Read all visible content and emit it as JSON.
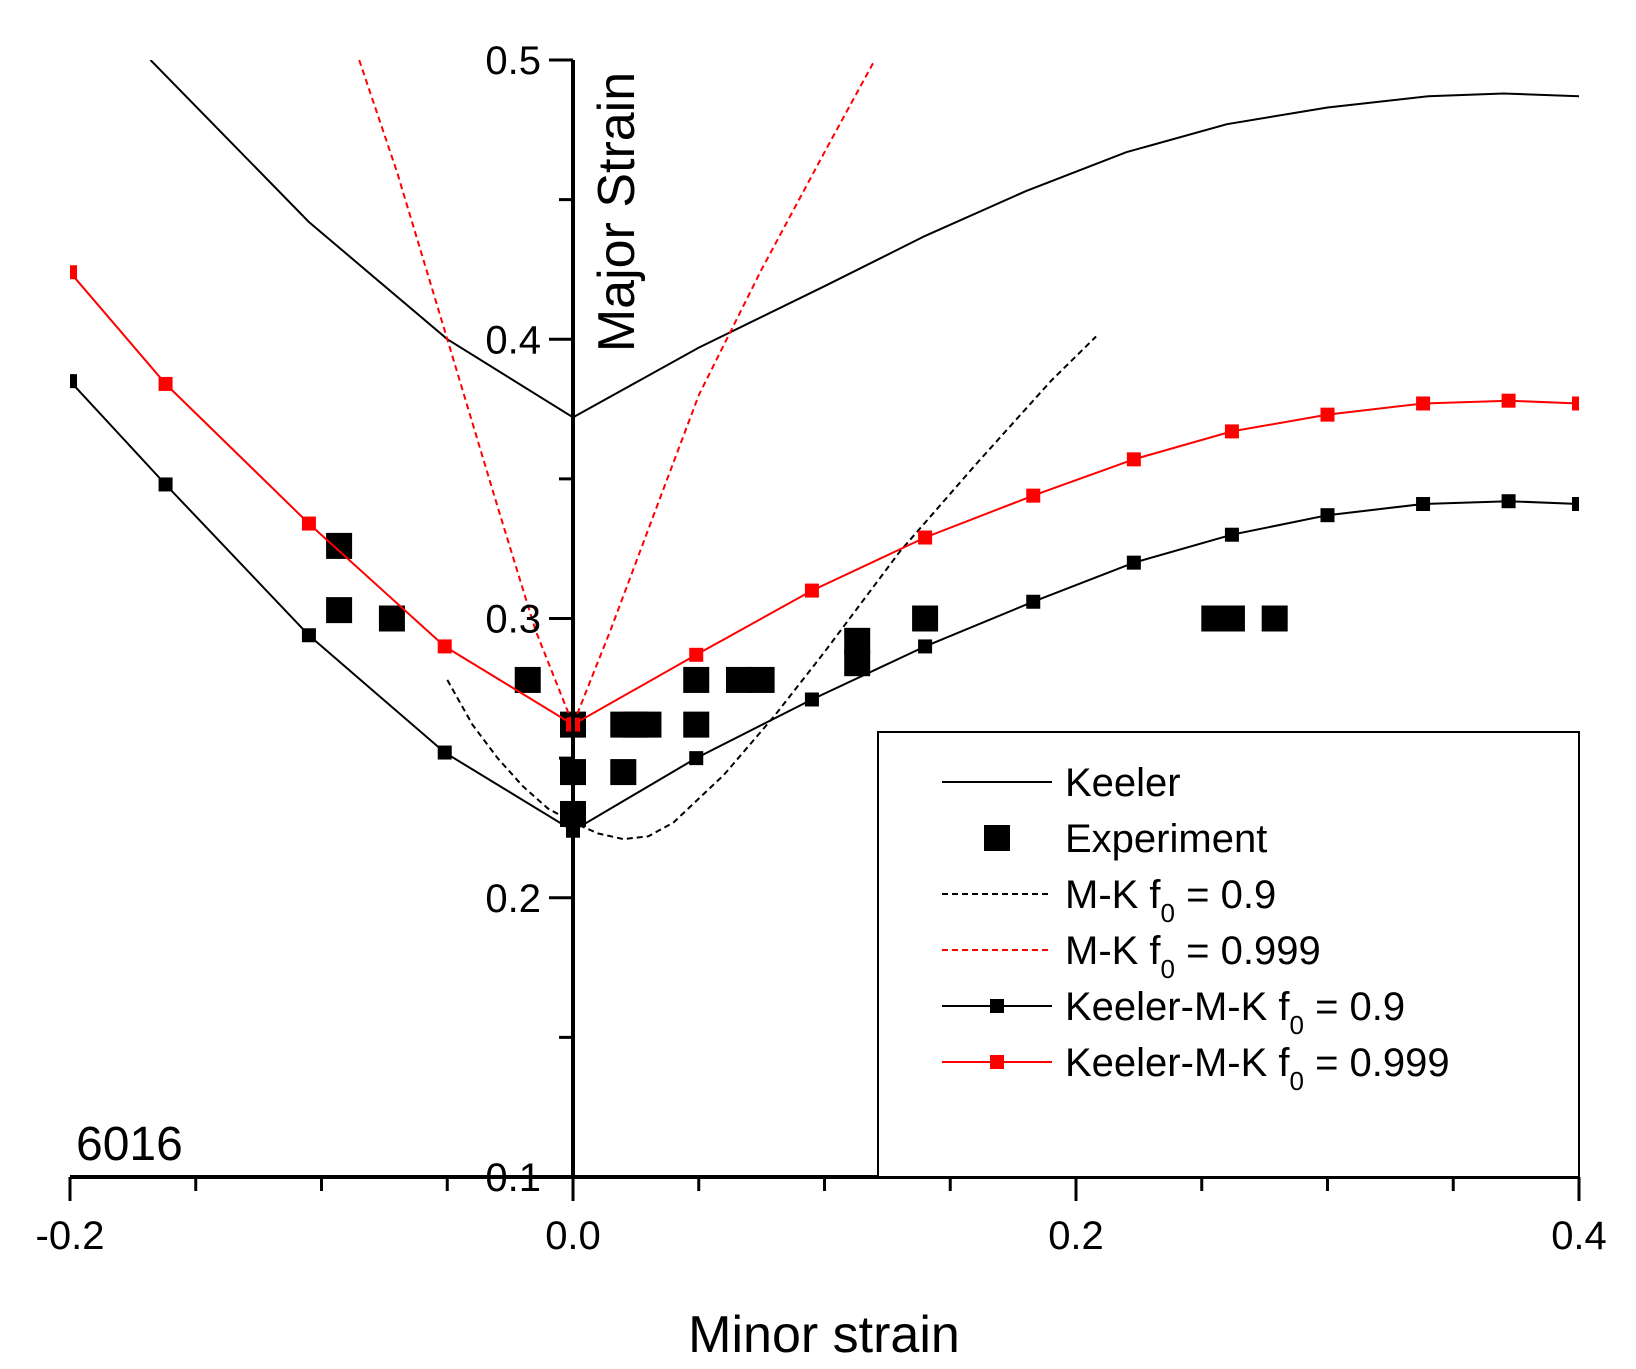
{
  "chart_data": {
    "type": "line",
    "title": "",
    "xlabel": "Minor strain",
    "ylabel": "Major Strain",
    "xlim": [
      -0.2,
      0.4
    ],
    "ylim": [
      0.1,
      0.5
    ],
    "grid": false,
    "legend_position": "bottom-right",
    "annotation": "6016",
    "x_tick_labels": [
      "-0.2",
      "0.0",
      "0.2",
      "0.4"
    ],
    "x_tick_values": [
      -0.2,
      0.0,
      0.2,
      0.4
    ],
    "y_tick_labels": [
      "0.1",
      "0.2",
      "0.3",
      "0.4",
      "0.5"
    ],
    "y_tick_values": [
      0.1,
      0.2,
      0.3,
      0.4,
      0.5
    ],
    "series": [
      {
        "name": "Keeler",
        "legend_main": "Keeler",
        "legend_sub": "",
        "legend_tail": "",
        "color": "#000000",
        "dash": "solid",
        "markers": false,
        "x": [
          -0.168,
          -0.105,
          -0.05,
          0.0,
          0.05,
          0.1,
          0.14,
          0.18,
          0.22,
          0.26,
          0.3,
          0.34,
          0.37,
          0.4
        ],
        "y": [
          0.5,
          0.442,
          0.4,
          0.372,
          0.397,
          0.419,
          0.437,
          0.453,
          0.467,
          0.477,
          0.483,
          0.487,
          0.488,
          0.487
        ]
      },
      {
        "name": "Experiment",
        "legend_main": "Experiment",
        "legend_sub": "",
        "legend_tail": "",
        "color": "#000000",
        "scatter": true,
        "x": [
          -0.093,
          -0.093,
          -0.072,
          -0.018,
          0.0,
          0.0,
          0.0,
          0.02,
          0.025,
          0.03,
          0.02,
          0.049,
          0.049,
          0.066,
          0.075,
          0.113,
          0.113,
          0.14,
          0.255,
          0.262,
          0.279
        ],
        "y": [
          0.326,
          0.303,
          0.3,
          0.278,
          0.262,
          0.245,
          0.23,
          0.262,
          0.262,
          0.262,
          0.245,
          0.278,
          0.262,
          0.278,
          0.278,
          0.292,
          0.284,
          0.3,
          0.3,
          0.3,
          0.3
        ]
      },
      {
        "name": "M-K f0 = 0.9",
        "legend_main": "M-K f",
        "legend_sub": "0",
        "legend_tail": " = 0.9",
        "color": "#000000",
        "dash": "dashed",
        "markers": false,
        "x": [
          -0.05,
          -0.04,
          -0.03,
          -0.02,
          -0.01,
          0.0,
          0.01,
          0.02,
          0.03,
          0.04,
          0.06,
          0.08,
          0.1,
          0.13,
          0.16,
          0.19,
          0.208
        ],
        "y": [
          0.278,
          0.262,
          0.25,
          0.24,
          0.232,
          0.227,
          0.223,
          0.221,
          0.222,
          0.227,
          0.244,
          0.265,
          0.288,
          0.324,
          0.355,
          0.385,
          0.401
        ]
      },
      {
        "name": "M-K f0 = 0.999",
        "legend_main": "M-K f",
        "legend_sub": "0",
        "legend_tail": " = 0.999",
        "color": "#ff0000",
        "dash": "dashed",
        "markers": false,
        "x": [
          -0.085,
          -0.07,
          -0.05,
          -0.03,
          -0.015,
          0.0,
          0.015,
          0.03,
          0.05,
          0.075,
          0.1,
          0.12
        ],
        "y": [
          0.5,
          0.46,
          0.4,
          0.34,
          0.296,
          0.262,
          0.296,
          0.332,
          0.38,
          0.425,
          0.467,
          0.5
        ]
      },
      {
        "name": "Keeler-M-K f0 = 0.9",
        "legend_main": "Keeler-M-K f",
        "legend_sub": "0",
        "legend_tail": " = 0.9",
        "color": "#000000",
        "dash": "solid",
        "markers": true,
        "x": [
          -0.2,
          -0.162,
          -0.105,
          -0.051,
          0.0,
          0.049,
          0.095,
          0.14,
          0.183,
          0.223,
          0.262,
          0.3,
          0.338,
          0.372,
          0.4
        ],
        "y": [
          0.385,
          0.348,
          0.294,
          0.252,
          0.224,
          0.25,
          0.271,
          0.29,
          0.306,
          0.32,
          0.33,
          0.337,
          0.341,
          0.342,
          0.341
        ]
      },
      {
        "name": "Keeler-M-K f0 = 0.999",
        "legend_main": "Keeler-M-K f",
        "legend_sub": "0",
        "legend_tail": " = 0.999",
        "color": "#ff0000",
        "dash": "solid",
        "markers": true,
        "x": [
          -0.2,
          -0.162,
          -0.105,
          -0.051,
          0.0,
          0.049,
          0.095,
          0.14,
          0.183,
          0.223,
          0.262,
          0.3,
          0.338,
          0.372,
          0.4
        ],
        "y": [
          0.424,
          0.384,
          0.334,
          0.29,
          0.262,
          0.287,
          0.31,
          0.329,
          0.344,
          0.357,
          0.367,
          0.373,
          0.377,
          0.378,
          0.377
        ]
      }
    ]
  }
}
